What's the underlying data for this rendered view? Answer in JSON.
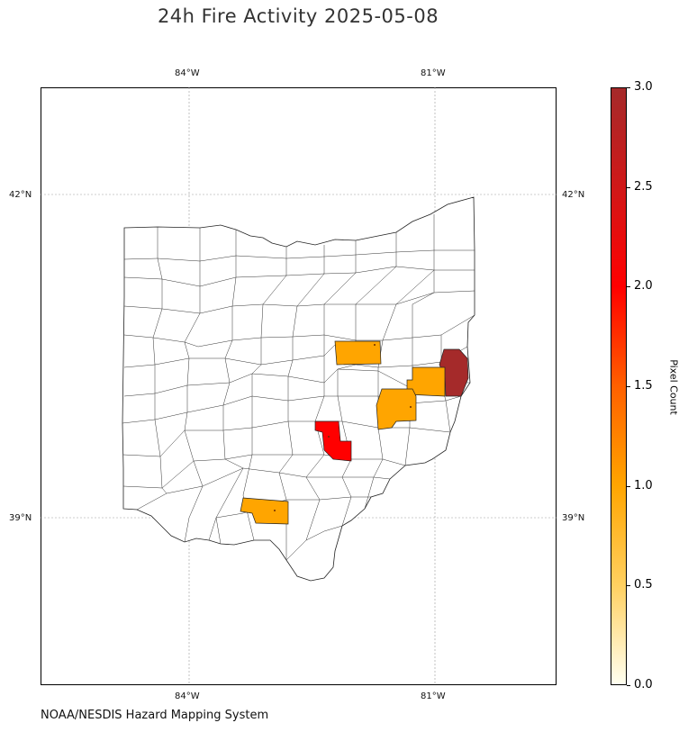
{
  "title": "24h Fire Activity 2025-05-08",
  "credit": "NOAA/NESDIS Hazard Mapping System",
  "map": {
    "region": "Ohio counties",
    "lon_ticks": [
      "84°W",
      "81°W"
    ],
    "lat_ticks": [
      "42°N",
      "39°N"
    ],
    "grid": true,
    "fire_counties": [
      {
        "color_value": 3
      },
      {
        "color_value": 2
      },
      {
        "color_value": 1
      },
      {
        "color_value": 1
      },
      {
        "color_value": 1
      },
      {
        "color_value": 1
      }
    ]
  },
  "colorbar": {
    "label": "Pixel Count",
    "ticks": [
      "0.0",
      "0.5",
      "1.0",
      "1.5",
      "2.0",
      "2.5",
      "3.0"
    ],
    "range": [
      0,
      3
    ],
    "colors": [
      "#fffff0",
      "#ffd060",
      "#ffa500",
      "#ff6000",
      "#ff0000",
      "#d01818",
      "#a52a2a"
    ]
  },
  "colors": {
    "no_fire": "#ffffff",
    "one_pixel": "#ffa500",
    "two_pixels": "#ff0000",
    "three_pixels": "#a52a2a",
    "county_border": "#333333",
    "grid": "#999999"
  }
}
